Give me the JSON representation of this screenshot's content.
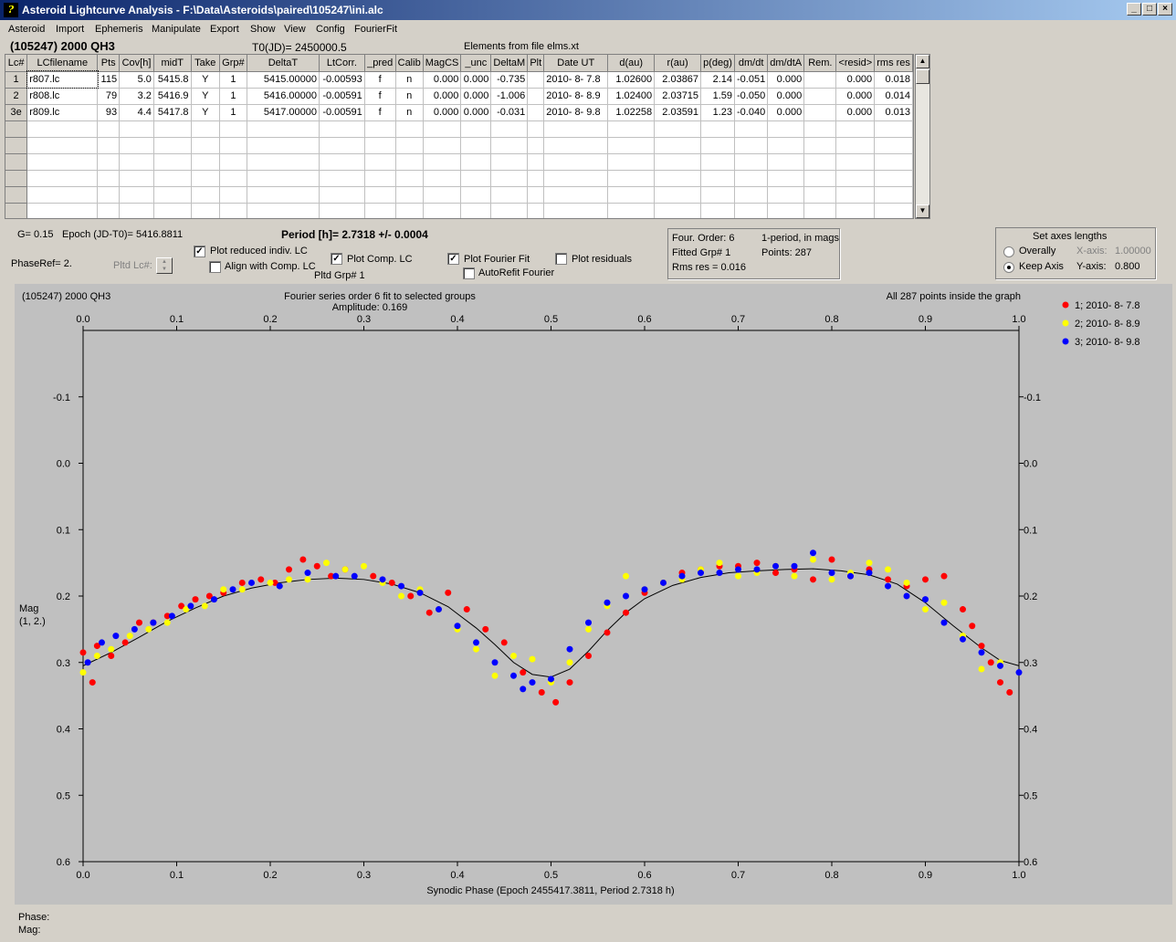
{
  "window": {
    "title": "Asteroid Lightcurve Analysis - F:\\Data\\Asteroids\\paired\\105247\\ini.alc",
    "icon": "ala-app-icon",
    "controls": [
      "_",
      "□",
      "×"
    ]
  },
  "menu": [
    "Asteroid",
    "Import",
    "Ephemeris",
    "Manipulate",
    "Export",
    "Show",
    "View",
    "Config",
    "FourierFit"
  ],
  "header": {
    "asteroid": "(105247) 2000 QH3",
    "t0": "T0(JD)= 2450000.5",
    "elements": "Elements from file elms.xt"
  },
  "table": {
    "columns": [
      "Lc#",
      "LCfilename",
      "Pts",
      "Cov[h]",
      "midT",
      "Take",
      "Grp#",
      "DeltaT",
      "LtCorr.",
      "_pred",
      "Calib",
      "MagCS",
      "_unc",
      "DeltaM",
      "Plt",
      "Date UT",
      "d(au)",
      "r(au)",
      "p(deg)",
      "dm/dt",
      "dm/dtA",
      "Rem.",
      "<resid>",
      "rms res"
    ],
    "rows": [
      [
        "1",
        "r807.lc",
        "115",
        "5.0",
        "5415.8",
        "Y",
        "1",
        "5415.00000",
        "-0.00593",
        "f",
        "n",
        "0.000",
        "0.000",
        "-0.735",
        "",
        "2010- 8- 7.8",
        "1.02600",
        "2.03867",
        "2.14",
        "-0.051",
        "0.000",
        "",
        "0.000",
        "0.018"
      ],
      [
        "2",
        "r808.lc",
        "79",
        "3.2",
        "5416.9",
        "Y",
        "1",
        "5416.00000",
        "-0.00591",
        "f",
        "n",
        "0.000",
        "0.000",
        "-1.006",
        "",
        "2010- 8- 8.9",
        "1.02400",
        "2.03715",
        "1.59",
        "-0.050",
        "0.000",
        "",
        "0.000",
        "0.014"
      ],
      [
        "3e",
        "r809.lc",
        "93",
        "4.4",
        "5417.8",
        "Y",
        "1",
        "5417.00000",
        "-0.00591",
        "f",
        "n",
        "0.000",
        "0.000",
        "-0.031",
        "",
        "2010- 8- 9.8",
        "1.02258",
        "2.03591",
        "1.23",
        "-0.040",
        "0.000",
        "",
        "0.000",
        "0.013"
      ]
    ],
    "empty_rows": 6,
    "scroll_up": "▲",
    "scroll_down": "▼"
  },
  "controls": {
    "g": "G= 0.15",
    "epoch": "Epoch (JD-T0)= 5416.8811",
    "period": "Period [h]= 2.7318 +/- 0.0004",
    "phase_ref": "PhaseRef= 2.",
    "pltd_lc": "Pltd Lc#:",
    "pltd_grp": "Pltd Grp#  1",
    "plot_reduced": {
      "label": "Plot reduced indiv. LC",
      "checked": true
    },
    "align_comp": {
      "label": "Align with Comp. LC",
      "checked": false
    },
    "plot_comp": {
      "label": "Plot Comp. LC",
      "checked": true
    },
    "plot_fourier": {
      "label": "Plot Fourier Fit",
      "checked": true
    },
    "autorefit": {
      "label": "AutoRefit Fourier",
      "checked": false
    },
    "plot_residuals": {
      "label": "Plot residuals",
      "checked": false
    },
    "check_mark": "✓"
  },
  "fit_info": {
    "order": "Four. Order:  6",
    "mode": "1-period, in mags",
    "fitted_grp": "Fitted Grp# 1",
    "points": "Points: 287",
    "rms": "Rms res     = 0.016"
  },
  "axes_box": {
    "title": "Set axes lengths",
    "overally": "Overally",
    "keep_axis": "Keep Axis",
    "x_label": "X-axis:",
    "x_value": "1.00000",
    "y_label": "Y-axis:",
    "y_value": "0.800",
    "selected": "Keep Axis"
  },
  "status": {
    "phase": "Phase:",
    "mag": "Mag:"
  },
  "chart_data": {
    "type": "scatter",
    "object": "(105247) 2000 QH3",
    "title": "Fourier series order 6 fit to selected groups",
    "subtitle": "Amplitude: 0.169",
    "note": "All 287 points inside the graph",
    "xlabel": "Synodic Phase (Epoch 2455417.3811, Period 2.7318 h)",
    "ylabel": [
      "Mag",
      "(1, 2.)"
    ],
    "xlim": [
      0.0,
      1.0
    ],
    "ylim": [
      -0.2,
      0.6
    ],
    "y_inverted": true,
    "xticks": [
      "0.0",
      "0.1",
      "0.2",
      "0.3",
      "0.4",
      "0.5",
      "0.6",
      "0.7",
      "0.8",
      "0.9",
      "1.0"
    ],
    "yticks": [
      "-0.1",
      "0.0",
      "0.1",
      "0.2",
      "0.3",
      "0.4",
      "0.5",
      "0.6"
    ],
    "legend_position": "top-right",
    "fit_curve": {
      "x": [
        0.0,
        0.03,
        0.06,
        0.09,
        0.12,
        0.15,
        0.18,
        0.21,
        0.24,
        0.27,
        0.3,
        0.33,
        0.36,
        0.39,
        0.42,
        0.44,
        0.46,
        0.48,
        0.5,
        0.52,
        0.54,
        0.56,
        0.58,
        0.6,
        0.63,
        0.66,
        0.69,
        0.72,
        0.75,
        0.78,
        0.81,
        0.84,
        0.87,
        0.9,
        0.93,
        0.96,
        0.98,
        1.0
      ],
      "y": [
        0.305,
        0.285,
        0.262,
        0.238,
        0.218,
        0.2,
        0.188,
        0.18,
        0.175,
        0.173,
        0.175,
        0.182,
        0.195,
        0.216,
        0.248,
        0.273,
        0.3,
        0.318,
        0.322,
        0.31,
        0.283,
        0.252,
        0.225,
        0.204,
        0.184,
        0.172,
        0.165,
        0.162,
        0.16,
        0.159,
        0.162,
        0.168,
        0.182,
        0.21,
        0.245,
        0.278,
        0.297,
        0.305
      ]
    },
    "series": [
      {
        "name": "1; 2010- 8- 7.8",
        "color": "#ff0000",
        "x": [
          0.0,
          0.01,
          0.015,
          0.03,
          0.045,
          0.06,
          0.075,
          0.09,
          0.105,
          0.12,
          0.135,
          0.15,
          0.17,
          0.19,
          0.205,
          0.22,
          0.235,
          0.25,
          0.265,
          0.28,
          0.31,
          0.33,
          0.35,
          0.37,
          0.39,
          0.41,
          0.43,
          0.45,
          0.47,
          0.49,
          0.505,
          0.52,
          0.54,
          0.56,
          0.58,
          0.6,
          0.62,
          0.64,
          0.66,
          0.68,
          0.7,
          0.72,
          0.74,
          0.76,
          0.78,
          0.8,
          0.82,
          0.84,
          0.86,
          0.88,
          0.9,
          0.92,
          0.94,
          0.95,
          0.96,
          0.97,
          0.98,
          0.99
        ],
        "y": [
          0.285,
          0.33,
          0.275,
          0.29,
          0.27,
          0.24,
          0.24,
          0.23,
          0.215,
          0.205,
          0.2,
          0.195,
          0.18,
          0.175,
          0.18,
          0.16,
          0.145,
          0.155,
          0.17,
          0.16,
          0.17,
          0.18,
          0.2,
          0.225,
          0.195,
          0.22,
          0.25,
          0.27,
          0.315,
          0.345,
          0.36,
          0.33,
          0.29,
          0.255,
          0.225,
          0.195,
          0.18,
          0.165,
          0.16,
          0.155,
          0.155,
          0.15,
          0.165,
          0.16,
          0.175,
          0.145,
          0.17,
          0.16,
          0.175,
          0.185,
          0.175,
          0.17,
          0.22,
          0.245,
          0.275,
          0.3,
          0.33,
          0.345
        ]
      },
      {
        "name": "2; 2010- 8- 8.9",
        "color": "#ffff00",
        "x": [
          0.0,
          0.015,
          0.03,
          0.05,
          0.07,
          0.09,
          0.11,
          0.13,
          0.15,
          0.17,
          0.2,
          0.22,
          0.24,
          0.26,
          0.28,
          0.3,
          0.32,
          0.34,
          0.36,
          0.38,
          0.4,
          0.42,
          0.44,
          0.46,
          0.48,
          0.5,
          0.52,
          0.54,
          0.56,
          0.58,
          0.6,
          0.62,
          0.64,
          0.66,
          0.68,
          0.7,
          0.72,
          0.74,
          0.76,
          0.78,
          0.8,
          0.82,
          0.84,
          0.86,
          0.88,
          0.9,
          0.92,
          0.94,
          0.96,
          0.98
        ],
        "y": [
          0.315,
          0.29,
          0.28,
          0.26,
          0.25,
          0.24,
          0.22,
          0.215,
          0.19,
          0.19,
          0.18,
          0.175,
          0.175,
          0.15,
          0.16,
          0.155,
          0.18,
          0.2,
          0.19,
          0.22,
          0.25,
          0.28,
          0.32,
          0.29,
          0.295,
          0.33,
          0.3,
          0.25,
          0.215,
          0.17,
          0.19,
          0.18,
          0.175,
          0.16,
          0.15,
          0.17,
          0.165,
          0.155,
          0.17,
          0.145,
          0.175,
          0.165,
          0.15,
          0.16,
          0.18,
          0.22,
          0.21,
          0.26,
          0.31,
          0.3
        ]
      },
      {
        "name": "3; 2010- 8- 9.8",
        "color": "#0000ff",
        "x": [
          0.005,
          0.02,
          0.035,
          0.055,
          0.075,
          0.095,
          0.115,
          0.14,
          0.16,
          0.18,
          0.21,
          0.24,
          0.27,
          0.29,
          0.32,
          0.34,
          0.36,
          0.38,
          0.4,
          0.42,
          0.44,
          0.46,
          0.47,
          0.48,
          0.5,
          0.52,
          0.54,
          0.56,
          0.58,
          0.6,
          0.62,
          0.64,
          0.66,
          0.68,
          0.7,
          0.72,
          0.74,
          0.76,
          0.78,
          0.8,
          0.82,
          0.84,
          0.86,
          0.88,
          0.9,
          0.92,
          0.94,
          0.96,
          0.98,
          1.0
        ],
        "y": [
          0.3,
          0.27,
          0.26,
          0.25,
          0.24,
          0.23,
          0.215,
          0.205,
          0.19,
          0.18,
          0.185,
          0.165,
          0.17,
          0.17,
          0.175,
          0.185,
          0.195,
          0.22,
          0.245,
          0.27,
          0.3,
          0.32,
          0.34,
          0.33,
          0.325,
          0.28,
          0.24,
          0.21,
          0.2,
          0.19,
          0.18,
          0.17,
          0.165,
          0.165,
          0.16,
          0.16,
          0.155,
          0.155,
          0.135,
          0.165,
          0.17,
          0.165,
          0.185,
          0.2,
          0.205,
          0.24,
          0.265,
          0.285,
          0.305,
          0.315
        ]
      }
    ]
  }
}
